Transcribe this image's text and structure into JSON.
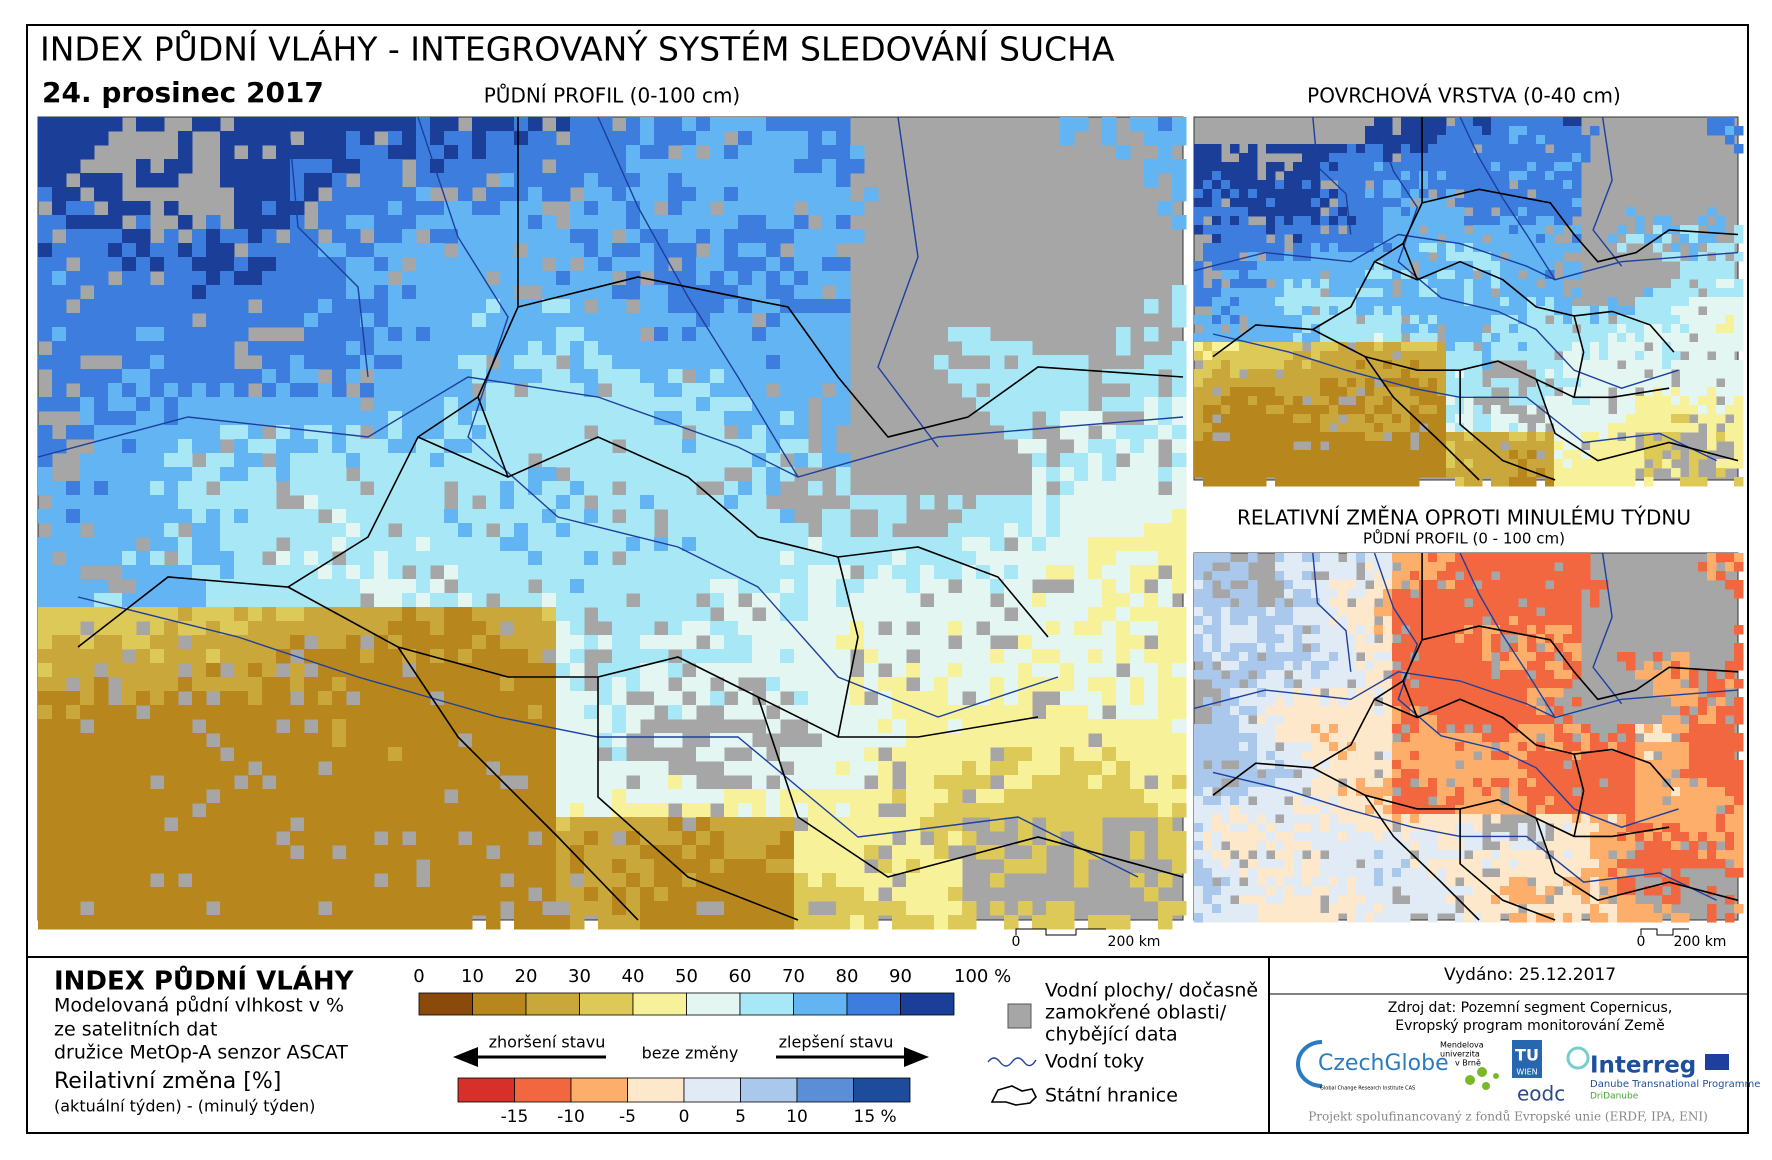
{
  "header": {
    "title": "INDEX PŮDNÍ VLÁHY - INTEGROVANÝ SYSTÉM SLEDOVÁNÍ SUCHA",
    "date": "24. prosinec 2017"
  },
  "maps": {
    "main_title": "PŮDNÍ PROFIL (0-100 cm)",
    "surface_title": "POVRCHOVÁ VRSTVA (0-40 cm)",
    "change_title": "RELATIVNÍ ZMĚNA OPROTI MINULÉMU TÝDNU",
    "change_subtitle": "PŮDNÍ PROFIL (0 - 100 cm)",
    "scale_start": "0",
    "scale_end": "200 km"
  },
  "legend": {
    "title": "INDEX PŮDNÍ VLÁHY",
    "description": [
      "Modelovaná půdní vlhkost v %",
      "ze satelitních dat",
      "družice MetOp-A senzor ASCAT"
    ],
    "index_ticks": [
      "0",
      "10",
      "20",
      "30",
      "40",
      "50",
      "60",
      "70",
      "80",
      "90",
      "100 %"
    ],
    "change_title": "Reilativní změna [%]",
    "change_description": "(aktuální týden) - (minulý týden)",
    "worse": "zhoršení stavu",
    "no_change": "beze změny",
    "better": "zlepšení stavu",
    "change_ticks": [
      "-15",
      "-10",
      "-5",
      "0",
      "5",
      "10",
      "15 %"
    ],
    "water": [
      "Vodní plochy/ dočasně",
      "zamokřené oblasti/",
      "chybějící data"
    ],
    "rivers": "Vodní toky",
    "borders": "Státní hranice"
  },
  "footer": {
    "issued": "Vydáno: 25.12.2017",
    "source": [
      "Zdroj dat: Pozemní segment Copernicus,",
      "Evropský program monitorování Země"
    ],
    "logos": {
      "czechglobe": "CzechGlobe",
      "czechglobe_sub": "Global Change Research Institute CAS",
      "mendel": [
        "Mendelova",
        "univerzita",
        "v Brně"
      ],
      "tu": [
        "TU",
        "WIEN"
      ],
      "eodc": "eodc",
      "interreg": "Interreg",
      "interreg_sub": "Danube Transnational Programme",
      "dridanube": "DriDanube"
    },
    "note": "Projekt spolufinancovaný z fondů Evropské unie (ERDF, IPA, ENI)"
  }
}
